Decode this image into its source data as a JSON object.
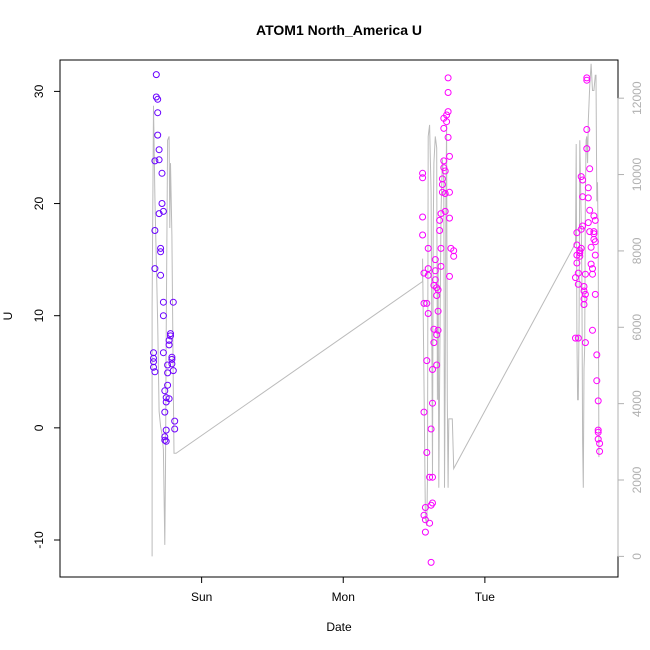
{
  "chart_data": {
    "type": "scatter",
    "title": "ATOM1 North_America U",
    "xlabel": "Date",
    "ylabel": "U",
    "x_ticks": [
      {
        "x": 1.0,
        "label": "Sun"
      },
      {
        "x": 2.0,
        "label": "Mon"
      },
      {
        "x": 3.0,
        "label": "Tue"
      }
    ],
    "xlim": [
      0.0,
      3.94
    ],
    "y_ticks": [
      -10,
      0,
      10,
      20,
      30
    ],
    "ylim": [
      -13.3,
      32.8
    ],
    "y2_ticks": [
      0,
      2000,
      4000,
      6000,
      8000,
      10000,
      12000
    ],
    "y2lim": [
      -540,
      13000
    ],
    "colors": {
      "line": "#bbbbbb",
      "right_axis": "#b0b0b0",
      "points_start": "#6600ff",
      "points_end": "#ff00ff"
    },
    "series": [
      {
        "points": [
          [
            0.66,
            6.7
          ],
          [
            0.66,
            6.2
          ],
          [
            0.66,
            5.9
          ],
          [
            0.66,
            5.4
          ],
          [
            0.67,
            5.0
          ],
          [
            0.67,
            14.2
          ],
          [
            0.67,
            17.6
          ],
          [
            0.67,
            23.8
          ],
          [
            0.68,
            31.5
          ],
          [
            0.68,
            29.5
          ],
          [
            0.69,
            29.3
          ],
          [
            0.69,
            28.1
          ],
          [
            0.69,
            26.1
          ],
          [
            0.7,
            24.8
          ],
          [
            0.7,
            23.9
          ],
          [
            0.7,
            19.1
          ],
          [
            0.71,
            16.0
          ],
          [
            0.71,
            15.7
          ],
          [
            0.71,
            13.6
          ],
          [
            0.72,
            22.7
          ],
          [
            0.72,
            20.0
          ],
          [
            0.73,
            19.3
          ],
          [
            0.73,
            11.2
          ],
          [
            0.73,
            10.0
          ],
          [
            0.73,
            6.7
          ],
          [
            0.74,
            3.3
          ],
          [
            0.74,
            1.4
          ],
          [
            0.74,
            -0.8
          ],
          [
            0.74,
            -1.1
          ],
          [
            0.75,
            -1.2
          ],
          [
            0.75,
            -0.2
          ],
          [
            0.75,
            2.3
          ],
          [
            0.75,
            2.7
          ],
          [
            0.76,
            3.8
          ],
          [
            0.76,
            5.6
          ],
          [
            0.76,
            4.9
          ],
          [
            0.77,
            7.4
          ],
          [
            0.77,
            7.8
          ],
          [
            0.77,
            2.6
          ],
          [
            0.78,
            8.2
          ],
          [
            0.78,
            8.4
          ],
          [
            0.79,
            6.1
          ],
          [
            0.79,
            5.7
          ],
          [
            0.79,
            6.3
          ],
          [
            0.8,
            5.1
          ],
          [
            0.8,
            11.2
          ],
          [
            0.81,
            0.6
          ],
          [
            0.81,
            -0.1
          ]
        ]
      },
      {
        "points": [
          [
            2.56,
            22.7
          ],
          [
            2.56,
            22.3
          ],
          [
            2.56,
            18.8
          ],
          [
            2.56,
            17.2
          ],
          [
            2.57,
            13.8
          ],
          [
            2.57,
            11.1
          ],
          [
            2.57,
            1.4
          ],
          [
            2.57,
            -7.8
          ],
          [
            2.58,
            -8.2
          ],
          [
            2.58,
            -9.3
          ],
          [
            2.58,
            -7.1
          ],
          [
            2.59,
            -2.2
          ],
          [
            2.59,
            6.0
          ],
          [
            2.59,
            11.1
          ],
          [
            2.6,
            13.6
          ],
          [
            2.6,
            16.0
          ],
          [
            2.6,
            14.2
          ],
          [
            2.6,
            10.2
          ],
          [
            2.61,
            -4.4
          ],
          [
            2.61,
            -8.5
          ],
          [
            2.62,
            -6.9
          ],
          [
            2.62,
            -12.0
          ],
          [
            2.62,
            -0.1
          ],
          [
            2.63,
            -6.7
          ],
          [
            2.63,
            -4.4
          ],
          [
            2.63,
            2.2
          ],
          [
            2.63,
            5.2
          ],
          [
            2.64,
            7.6
          ],
          [
            2.64,
            8.8
          ],
          [
            2.64,
            12.7
          ],
          [
            2.65,
            13.2
          ],
          [
            2.65,
            14.0
          ],
          [
            2.65,
            15.0
          ],
          [
            2.66,
            12.5
          ],
          [
            2.66,
            11.8
          ],
          [
            2.66,
            5.6
          ],
          [
            2.66,
            8.3
          ],
          [
            2.67,
            8.7
          ],
          [
            2.67,
            10.4
          ],
          [
            2.67,
            12.3
          ],
          [
            2.68,
            17.6
          ],
          [
            2.68,
            18.5
          ],
          [
            2.69,
            19.1
          ],
          [
            2.69,
            16.0
          ],
          [
            2.69,
            14.4
          ],
          [
            2.7,
            21.0
          ],
          [
            2.7,
            22.2
          ],
          [
            2.7,
            21.7
          ],
          [
            2.71,
            26.7
          ],
          [
            2.71,
            27.6
          ],
          [
            2.71,
            23.8
          ],
          [
            2.71,
            23.2
          ],
          [
            2.72,
            22.9
          ],
          [
            2.72,
            20.9
          ],
          [
            2.72,
            19.3
          ],
          [
            2.73,
            27.3
          ],
          [
            2.73,
            27.9
          ],
          [
            2.74,
            28.2
          ],
          [
            2.74,
            29.9
          ],
          [
            2.74,
            31.2
          ],
          [
            2.74,
            25.9
          ],
          [
            2.75,
            24.2
          ],
          [
            2.75,
            21.0
          ],
          [
            2.75,
            18.7
          ],
          [
            2.75,
            13.5
          ],
          [
            2.76,
            16.0
          ],
          [
            2.78,
            15.8
          ],
          [
            2.78,
            15.3
          ]
        ]
      },
      {
        "points": [
          [
            3.64,
            8.0
          ],
          [
            3.64,
            13.4
          ],
          [
            3.65,
            15.4
          ],
          [
            3.65,
            16.3
          ],
          [
            3.65,
            17.4
          ],
          [
            3.65,
            14.7
          ],
          [
            3.66,
            13.8
          ],
          [
            3.66,
            12.8
          ],
          [
            3.66,
            8.0
          ],
          [
            3.67,
            15.8
          ],
          [
            3.67,
            15.6
          ],
          [
            3.67,
            15.3
          ],
          [
            3.68,
            17.7
          ],
          [
            3.68,
            16.0
          ],
          [
            3.68,
            22.4
          ],
          [
            3.69,
            22.1
          ],
          [
            3.69,
            20.6
          ],
          [
            3.69,
            18.0
          ],
          [
            3.7,
            12.6
          ],
          [
            3.7,
            12.2
          ],
          [
            3.7,
            11.5
          ],
          [
            3.7,
            11.0
          ],
          [
            3.71,
            11.9
          ],
          [
            3.71,
            7.6
          ],
          [
            3.71,
            13.7
          ],
          [
            3.72,
            31.2
          ],
          [
            3.72,
            31.0
          ],
          [
            3.72,
            26.6
          ],
          [
            3.72,
            24.9
          ],
          [
            3.73,
            21.4
          ],
          [
            3.73,
            20.5
          ],
          [
            3.73,
            18.3
          ],
          [
            3.74,
            23.1
          ],
          [
            3.74,
            19.4
          ],
          [
            3.74,
            17.5
          ],
          [
            3.75,
            16.1
          ],
          [
            3.75,
            14.6
          ],
          [
            3.76,
            14.2
          ],
          [
            3.76,
            13.7
          ],
          [
            3.76,
            8.7
          ],
          [
            3.77,
            18.9
          ],
          [
            3.77,
            17.5
          ],
          [
            3.77,
            17.3
          ],
          [
            3.77,
            16.8
          ],
          [
            3.78,
            18.5
          ],
          [
            3.78,
            16.6
          ],
          [
            3.78,
            15.4
          ],
          [
            3.78,
            11.9
          ],
          [
            3.79,
            6.5
          ],
          [
            3.79,
            4.2
          ],
          [
            3.8,
            2.4
          ],
          [
            3.8,
            -0.2
          ],
          [
            3.8,
            -0.4
          ],
          [
            3.8,
            -1.0
          ],
          [
            3.81,
            -2.1
          ],
          [
            3.81,
            -1.4
          ]
        ]
      }
    ],
    "line2": [
      [
        0.65,
        0
      ],
      [
        0.65,
        6500
      ],
      [
        0.66,
        11800
      ],
      [
        0.67,
        9400
      ],
      [
        0.69,
        6100
      ],
      [
        0.7,
        3800
      ],
      [
        0.71,
        3400
      ],
      [
        0.72,
        3200
      ],
      [
        0.73,
        2800
      ],
      [
        0.74,
        300
      ],
      [
        0.745,
        2300
      ],
      [
        0.75,
        5800
      ],
      [
        0.76,
        10900
      ],
      [
        0.77,
        11000
      ],
      [
        0.775,
        8600
      ],
      [
        0.78,
        10300
      ],
      [
        0.79,
        8400
      ],
      [
        0.8,
        4400
      ],
      [
        0.805,
        2700
      ],
      [
        0.82,
        2700
      ],
      [
        2.56,
        7200
      ],
      [
        2.56,
        7800
      ],
      [
        2.57,
        4500
      ],
      [
        2.58,
        1000
      ],
      [
        2.59,
        800
      ],
      [
        2.595,
        2100
      ],
      [
        2.6,
        11000
      ],
      [
        2.61,
        11300
      ],
      [
        2.62,
        9500
      ],
      [
        2.63,
        2100
      ],
      [
        2.635,
        8400
      ],
      [
        2.64,
        10300
      ],
      [
        2.65,
        11000
      ],
      [
        2.66,
        10700
      ],
      [
        2.665,
        4100
      ],
      [
        2.67,
        7700
      ],
      [
        2.675,
        1800
      ],
      [
        2.68,
        4500
      ],
      [
        2.69,
        9000
      ],
      [
        2.7,
        10400
      ],
      [
        2.71,
        9800
      ],
      [
        2.715,
        1800
      ],
      [
        2.72,
        4600
      ],
      [
        2.725,
        9200
      ],
      [
        2.73,
        11300
      ],
      [
        2.735,
        4100
      ],
      [
        2.74,
        1800
      ],
      [
        2.745,
        3600
      ],
      [
        2.75,
        3600
      ],
      [
        2.76,
        3600
      ],
      [
        2.77,
        3600
      ],
      [
        2.78,
        2300
      ],
      [
        3.64,
        8200
      ],
      [
        3.645,
        10800
      ],
      [
        3.65,
        5800
      ],
      [
        3.655,
        4100
      ],
      [
        3.66,
        4100
      ],
      [
        3.665,
        6200
      ],
      [
        3.67,
        10900
      ],
      [
        3.68,
        8800
      ],
      [
        3.685,
        7200
      ],
      [
        3.69,
        3000
      ],
      [
        3.695,
        1800
      ],
      [
        3.7,
        4900
      ],
      [
        3.705,
        5500
      ],
      [
        3.71,
        9500
      ],
      [
        3.715,
        10900
      ],
      [
        3.72,
        11000
      ],
      [
        3.725,
        10300
      ],
      [
        3.73,
        11400
      ],
      [
        3.74,
        12300
      ],
      [
        3.75,
        12900
      ],
      [
        3.76,
        12200
      ],
      [
        3.77,
        12200
      ],
      [
        3.78,
        12600
      ],
      [
        3.785,
        12600
      ],
      [
        3.79,
        9300
      ],
      [
        3.795,
        9800
      ],
      [
        3.8,
        8200
      ],
      [
        3.805,
        2600
      ]
    ]
  }
}
